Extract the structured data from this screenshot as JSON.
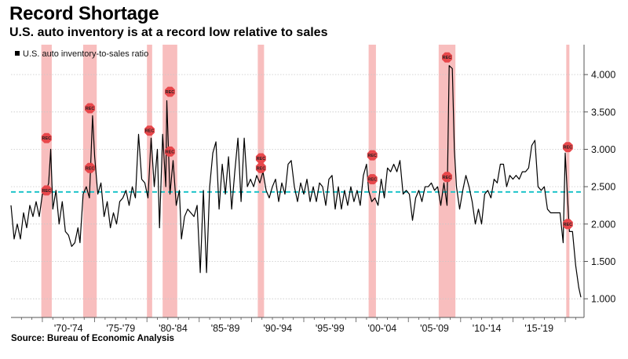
{
  "title": "Record Shortage",
  "subtitle": "U.S. auto inventory is at a record low relative to sales",
  "source": "Source: Bureau of Economic Analysis",
  "colors": {
    "line": "#000000",
    "recession_band": "#f7b3b3",
    "recession_marker": "#e8474b",
    "average_line": "#1fc4c9",
    "grid": "#c8c8c8"
  },
  "chart_data": {
    "type": "line",
    "title": "Record Shortage",
    "subtitle": "U.S. auto inventory is at a record low relative to sales",
    "legend": {
      "entries": [
        "U.S. auto inventory-to-sales ratio"
      ],
      "position": "top-left"
    },
    "x_ticks": [
      "'70-'74",
      "'75-'79",
      "'80-'84",
      "'85-'89",
      "'90-'94",
      "'95-'99",
      "'00-'04",
      "'05-'09",
      "'10-'14",
      "'15-'19"
    ],
    "x_range": [
      1967.0,
      2021.8
    ],
    "ylim": [
      0.75,
      4.4
    ],
    "y_ticks": [
      "1.000",
      "1.500",
      "2.000",
      "2.500",
      "3.000",
      "3.500",
      "4.000"
    ],
    "y_tick_values": [
      1.0,
      1.5,
      2.0,
      2.5,
      3.0,
      3.5,
      4.0
    ],
    "y_axis_side": "right",
    "grid": true,
    "average_line": {
      "value": 2.43,
      "style": "dashed"
    },
    "recession_marker_label": "REC",
    "recessions": [
      {
        "start": 1969.9,
        "end": 1970.9,
        "markers": [
          2.45,
          3.15
        ]
      },
      {
        "start": 1973.9,
        "end": 1975.2,
        "markers": [
          2.75,
          3.55
        ]
      },
      {
        "start": 1980.0,
        "end": 1980.5,
        "markers": [
          3.25
        ]
      },
      {
        "start": 1981.5,
        "end": 1982.9,
        "markers": [
          2.97,
          3.77
        ]
      },
      {
        "start": 1990.6,
        "end": 1991.2,
        "markers": [
          2.75,
          2.88
        ]
      },
      {
        "start": 2001.2,
        "end": 2001.9,
        "markers": [
          2.6,
          2.92
        ]
      },
      {
        "start": 2007.9,
        "end": 2009.5,
        "markers": [
          2.63,
          4.23
        ]
      },
      {
        "start": 2020.1,
        "end": 2020.4,
        "markers": [
          3.03,
          2.0
        ]
      }
    ],
    "series": [
      {
        "name": "U.S. auto inventory-to-sales ratio",
        "points": [
          [
            1967.0,
            2.25
          ],
          [
            1967.3,
            1.8
          ],
          [
            1967.6,
            2.0
          ],
          [
            1967.9,
            1.8
          ],
          [
            1968.2,
            2.15
          ],
          [
            1968.5,
            1.95
          ],
          [
            1968.8,
            2.25
          ],
          [
            1969.1,
            2.1
          ],
          [
            1969.4,
            2.3
          ],
          [
            1969.7,
            2.1
          ],
          [
            1970.0,
            2.4
          ],
          [
            1970.3,
            2.4
          ],
          [
            1970.6,
            2.55
          ],
          [
            1970.8,
            3.0
          ],
          [
            1971.0,
            2.2
          ],
          [
            1971.3,
            2.45
          ],
          [
            1971.6,
            2.0
          ],
          [
            1971.9,
            2.3
          ],
          [
            1972.2,
            1.9
          ],
          [
            1972.5,
            1.85
          ],
          [
            1972.8,
            1.7
          ],
          [
            1973.1,
            1.75
          ],
          [
            1973.4,
            1.95
          ],
          [
            1973.6,
            1.75
          ],
          [
            1973.9,
            2.4
          ],
          [
            1974.2,
            2.5
          ],
          [
            1974.5,
            2.35
          ],
          [
            1974.8,
            3.45
          ],
          [
            1975.0,
            2.9
          ],
          [
            1975.3,
            2.4
          ],
          [
            1975.6,
            2.55
          ],
          [
            1975.9,
            2.1
          ],
          [
            1976.2,
            2.3
          ],
          [
            1976.5,
            1.95
          ],
          [
            1976.8,
            2.15
          ],
          [
            1977.1,
            2.0
          ],
          [
            1977.4,
            2.3
          ],
          [
            1977.7,
            2.35
          ],
          [
            1978.0,
            2.45
          ],
          [
            1978.3,
            2.25
          ],
          [
            1978.6,
            2.5
          ],
          [
            1978.9,
            2.35
          ],
          [
            1979.2,
            3.2
          ],
          [
            1979.5,
            2.6
          ],
          [
            1979.8,
            2.55
          ],
          [
            1980.1,
            2.35
          ],
          [
            1980.4,
            3.15
          ],
          [
            1980.7,
            2.5
          ],
          [
            1981.0,
            3.0
          ],
          [
            1981.2,
            1.95
          ],
          [
            1981.5,
            3.2
          ],
          [
            1981.8,
            2.5
          ],
          [
            1981.9,
            3.65
          ],
          [
            1982.2,
            2.4
          ],
          [
            1982.5,
            2.85
          ],
          [
            1982.8,
            2.25
          ],
          [
            1983.1,
            2.45
          ],
          [
            1983.3,
            1.8
          ],
          [
            1983.6,
            2.1
          ],
          [
            1983.9,
            2.2
          ],
          [
            1984.2,
            2.15
          ],
          [
            1984.5,
            2.1
          ],
          [
            1984.8,
            2.25
          ],
          [
            1985.1,
            1.35
          ],
          [
            1985.4,
            2.45
          ],
          [
            1985.7,
            1.35
          ],
          [
            1986.0,
            2.5
          ],
          [
            1986.3,
            2.95
          ],
          [
            1986.6,
            3.1
          ],
          [
            1986.9,
            2.2
          ],
          [
            1987.2,
            2.8
          ],
          [
            1987.5,
            2.4
          ],
          [
            1987.8,
            2.9
          ],
          [
            1988.1,
            2.2
          ],
          [
            1988.4,
            2.7
          ],
          [
            1988.7,
            3.15
          ],
          [
            1989.0,
            2.3
          ],
          [
            1989.3,
            3.15
          ],
          [
            1989.6,
            2.5
          ],
          [
            1989.9,
            2.6
          ],
          [
            1990.2,
            2.5
          ],
          [
            1990.5,
            2.65
          ],
          [
            1990.8,
            2.55
          ],
          [
            1991.1,
            2.7
          ],
          [
            1991.4,
            2.45
          ],
          [
            1991.7,
            2.35
          ],
          [
            1992.0,
            2.5
          ],
          [
            1992.3,
            2.6
          ],
          [
            1992.6,
            2.3
          ],
          [
            1992.9,
            2.55
          ],
          [
            1993.2,
            2.4
          ],
          [
            1993.5,
            2.8
          ],
          [
            1993.8,
            2.85
          ],
          [
            1994.1,
            2.5
          ],
          [
            1994.4,
            2.3
          ],
          [
            1994.7,
            2.55
          ],
          [
            1995.0,
            2.4
          ],
          [
            1995.3,
            2.6
          ],
          [
            1995.6,
            2.3
          ],
          [
            1995.9,
            2.5
          ],
          [
            1996.2,
            2.3
          ],
          [
            1996.5,
            2.55
          ],
          [
            1996.8,
            2.5
          ],
          [
            1997.1,
            2.25
          ],
          [
            1997.4,
            2.6
          ],
          [
            1997.7,
            2.65
          ],
          [
            1998.0,
            2.2
          ],
          [
            1998.3,
            2.5
          ],
          [
            1998.6,
            2.2
          ],
          [
            1998.9,
            2.45
          ],
          [
            1999.2,
            2.25
          ],
          [
            1999.5,
            2.5
          ],
          [
            1999.8,
            2.3
          ],
          [
            2000.1,
            2.45
          ],
          [
            2000.4,
            2.25
          ],
          [
            2000.7,
            2.65
          ],
          [
            2001.0,
            2.8
          ],
          [
            2001.2,
            2.45
          ],
          [
            2001.5,
            2.3
          ],
          [
            2001.8,
            2.35
          ],
          [
            2002.1,
            2.25
          ],
          [
            2002.4,
            2.6
          ],
          [
            2002.7,
            2.35
          ],
          [
            2003.0,
            2.75
          ],
          [
            2003.3,
            2.7
          ],
          [
            2003.6,
            2.8
          ],
          [
            2003.9,
            2.7
          ],
          [
            2004.2,
            2.85
          ],
          [
            2004.5,
            2.4
          ],
          [
            2004.8,
            2.45
          ],
          [
            2005.1,
            2.4
          ],
          [
            2005.4,
            2.05
          ],
          [
            2005.7,
            2.35
          ],
          [
            2006.0,
            2.45
          ],
          [
            2006.3,
            2.3
          ],
          [
            2006.6,
            2.5
          ],
          [
            2006.9,
            2.5
          ],
          [
            2007.2,
            2.55
          ],
          [
            2007.5,
            2.45
          ],
          [
            2007.8,
            2.5
          ],
          [
            2008.1,
            2.25
          ],
          [
            2008.4,
            2.55
          ],
          [
            2008.7,
            2.25
          ],
          [
            2008.9,
            4.12
          ],
          [
            2009.2,
            4.08
          ],
          [
            2009.4,
            3.0
          ],
          [
            2009.6,
            2.5
          ],
          [
            2009.9,
            2.2
          ],
          [
            2010.2,
            2.45
          ],
          [
            2010.5,
            2.65
          ],
          [
            2010.8,
            2.5
          ],
          [
            2011.1,
            2.3
          ],
          [
            2011.4,
            2.0
          ],
          [
            2011.7,
            2.2
          ],
          [
            2012.0,
            2.0
          ],
          [
            2012.3,
            2.4
          ],
          [
            2012.6,
            2.45
          ],
          [
            2012.9,
            2.35
          ],
          [
            2013.2,
            2.6
          ],
          [
            2013.5,
            2.55
          ],
          [
            2013.8,
            2.8
          ],
          [
            2014.1,
            2.8
          ],
          [
            2014.4,
            2.5
          ],
          [
            2014.7,
            2.65
          ],
          [
            2015.0,
            2.6
          ],
          [
            2015.3,
            2.65
          ],
          [
            2015.6,
            2.6
          ],
          [
            2015.9,
            2.7
          ],
          [
            2016.2,
            2.7
          ],
          [
            2016.5,
            2.75
          ],
          [
            2016.8,
            3.05
          ],
          [
            2017.1,
            3.12
          ],
          [
            2017.4,
            2.5
          ],
          [
            2017.7,
            2.45
          ],
          [
            2018.0,
            2.5
          ],
          [
            2018.3,
            2.2
          ],
          [
            2018.6,
            2.15
          ],
          [
            2018.9,
            2.15
          ],
          [
            2019.2,
            2.15
          ],
          [
            2019.5,
            2.15
          ],
          [
            2019.8,
            1.75
          ],
          [
            2020.0,
            2.95
          ],
          [
            2020.2,
            2.4
          ],
          [
            2020.4,
            1.9
          ],
          [
            2020.7,
            1.9
          ],
          [
            2021.0,
            1.45
          ],
          [
            2021.3,
            1.15
          ],
          [
            2021.5,
            1.02
          ]
        ]
      }
    ]
  }
}
